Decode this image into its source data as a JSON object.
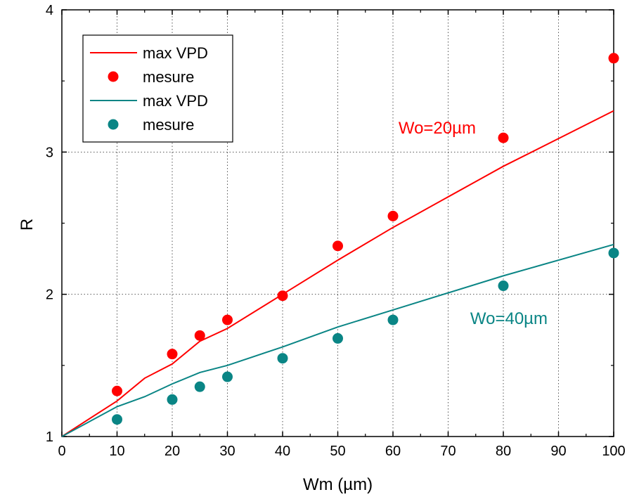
{
  "chart_data": {
    "type": "line",
    "xlabel": "Wm (µm)",
    "ylabel": "R",
    "xlim": [
      0,
      100
    ],
    "ylim": [
      1,
      4
    ],
    "xticks": [
      0,
      10,
      20,
      30,
      40,
      50,
      60,
      70,
      80,
      90,
      100
    ],
    "yticks": [
      1,
      2,
      3,
      4
    ],
    "grid": true,
    "legend_position": "top-left",
    "series": [
      {
        "name": "max VPD",
        "kind": "line",
        "color": "#ff0000",
        "x": [
          0,
          10,
          15,
          20,
          25,
          30,
          40,
          50,
          60,
          80,
          100
        ],
        "y": [
          1.0,
          1.25,
          1.41,
          1.51,
          1.67,
          1.76,
          2.0,
          2.24,
          2.47,
          2.9,
          3.29
        ]
      },
      {
        "name": "mesure",
        "kind": "scatter",
        "color": "#ff0000",
        "x": [
          10,
          20,
          25,
          30,
          40,
          50,
          60,
          80,
          100
        ],
        "y": [
          1.32,
          1.58,
          1.71,
          1.82,
          1.99,
          2.34,
          2.55,
          3.1,
          3.66
        ]
      },
      {
        "name": "max VPD",
        "kind": "line",
        "color": "#0a8585",
        "x": [
          0,
          10,
          15,
          20,
          25,
          30,
          40,
          50,
          60,
          80,
          100
        ],
        "y": [
          1.0,
          1.21,
          1.28,
          1.37,
          1.45,
          1.5,
          1.63,
          1.77,
          1.89,
          2.13,
          2.35
        ]
      },
      {
        "name": "mesure",
        "kind": "scatter",
        "color": "#0a8585",
        "x": [
          10,
          20,
          25,
          30,
          40,
          50,
          60,
          80,
          100
        ],
        "y": [
          1.12,
          1.26,
          1.35,
          1.42,
          1.55,
          1.69,
          1.82,
          2.06,
          2.29
        ]
      }
    ],
    "annotations": [
      {
        "text": "Wo=20µm",
        "x": 61,
        "y": 3.13,
        "color": "#ff0000"
      },
      {
        "text": "Wo=40µm",
        "x": 74,
        "y": 1.79,
        "color": "#0a8585"
      }
    ]
  }
}
